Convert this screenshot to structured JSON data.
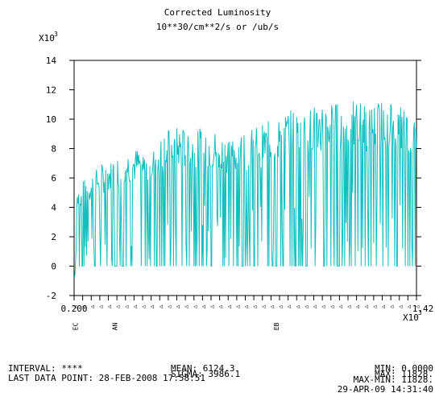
{
  "chart_data": {
    "type": "line",
    "title": "Corrected Luminosity",
    "subtitle": "10**30/cm**2/s or /ub/s",
    "y_multiplier_label": "X10",
    "y_multiplier_exp": "3",
    "x_multiplier_label": "X10",
    "x_multiplier_exp": "3",
    "ylim": [
      -2,
      14
    ],
    "yticks": [
      -2,
      0,
      2,
      4,
      6,
      8,
      10,
      12,
      14
    ],
    "xlim": [
      0.2,
      1.42
    ],
    "x_start_label": "0.200",
    "x_end_label": "1.42",
    "month_labels": [
      {
        "label": "DEC",
        "x": 0.205
      },
      {
        "label": "JAN",
        "x": 0.345
      },
      {
        "label": "FEB",
        "x": 0.92
      }
    ],
    "line_color": "#12bfbf",
    "envelope": {
      "x": [
        0.2,
        0.205,
        0.22,
        0.24,
        0.27,
        0.3,
        0.32,
        0.34,
        0.35,
        0.36,
        0.38,
        0.4,
        0.43,
        0.46,
        0.5,
        0.53,
        0.56,
        0.6,
        0.63,
        0.67,
        0.7,
        0.74,
        0.78,
        0.81,
        0.85,
        0.88,
        0.9,
        0.93,
        0.96,
        1.0,
        1.04,
        1.08,
        1.12,
        1.16,
        1.2,
        1.25,
        1.3,
        1.34,
        1.37,
        1.4,
        1.42
      ],
      "y": [
        3.2,
        5.3,
        5.5,
        6.0,
        6.5,
        7.0,
        7.2,
        7.2,
        7.5,
        7.6,
        7.9,
        8.0,
        8.1,
        7.8,
        8.5,
        9.3,
        9.5,
        9.4,
        9.2,
        9.6,
        9.3,
        9.0,
        9.1,
        9.3,
        9.5,
        9.7,
        10.0,
        10.3,
        10.6,
        10.8,
        11.0,
        11.1,
        11.2,
        11.0,
        11.3,
        11.0,
        11.4,
        11.3,
        11.0,
        10.4,
        9.6
      ]
    },
    "data_stats": {
      "mean": 6124.3,
      "sigma": 3986.1,
      "min": 0.0,
      "max": 11828.0
    }
  },
  "footer": {
    "interval": "INTERVAL: ****",
    "last_point": "LAST DATA POINT: 28-FEB-2008 17:58:51",
    "mean": "MEAN: 6124.3",
    "sigma": "SIGMA: 3986.1",
    "min": "MIN: 0.0000",
    "max": "MAX: 11828.",
    "maxmin": "MAX-MIN: 11828.",
    "timestamp": "29-APR-09 14:31:40"
  }
}
